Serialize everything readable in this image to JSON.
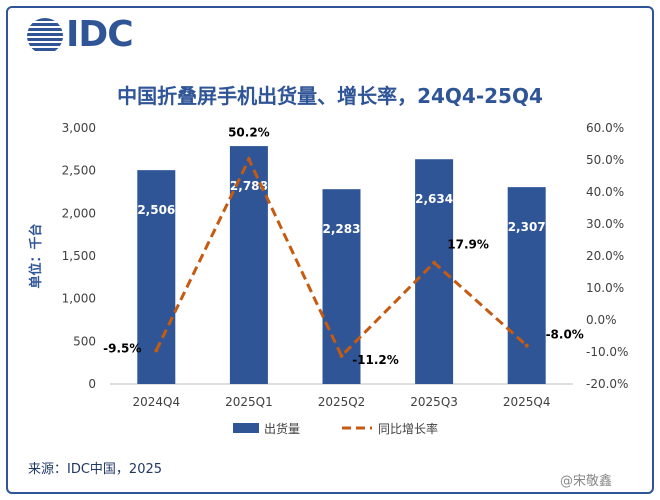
{
  "logo": {
    "text": "IDC",
    "icon": "idc-globe-icon"
  },
  "source": "来源：IDC中国，2025",
  "watermark": "@宋敬鑫",
  "chart_data": {
    "type": "bar",
    "title": "中国折叠屏手机出货量、增长率，24Q4-25Q4",
    "ylabel": "单位：千台",
    "categories": [
      "2024Q4",
      "2025Q1",
      "2025Q2",
      "2025Q3",
      "2025Q4"
    ],
    "ylim": [
      0,
      3000
    ],
    "y_ticks": [
      "0",
      "500",
      "1,000",
      "1,500",
      "2,000",
      "2,500",
      "3,000"
    ],
    "y2lim": [
      -20.0,
      60.0
    ],
    "y2_ticks": [
      "-20.0%",
      "-10.0%",
      "0.0%",
      "10.0%",
      "20.0%",
      "30.0%",
      "40.0%",
      "50.0%",
      "60.0%"
    ],
    "series": [
      {
        "name": "出货量",
        "type": "bar",
        "axis": "left",
        "values": [
          2506,
          2788,
          2283,
          2634,
          2307
        ],
        "labels": [
          "2,506",
          "2,788",
          "2,283",
          "2,634",
          "2,307"
        ],
        "color": "#2f5597"
      },
      {
        "name": "同比增长率",
        "type": "line",
        "axis": "right",
        "dashed": true,
        "values": [
          -9.5,
          50.2,
          -11.2,
          17.9,
          -8.0
        ],
        "labels": [
          "-9.5%",
          "50.2%",
          "-11.2%",
          "17.9%",
          "-8.0%"
        ],
        "color": "#c55a11"
      }
    ],
    "grid": false,
    "legend": "bottom"
  }
}
